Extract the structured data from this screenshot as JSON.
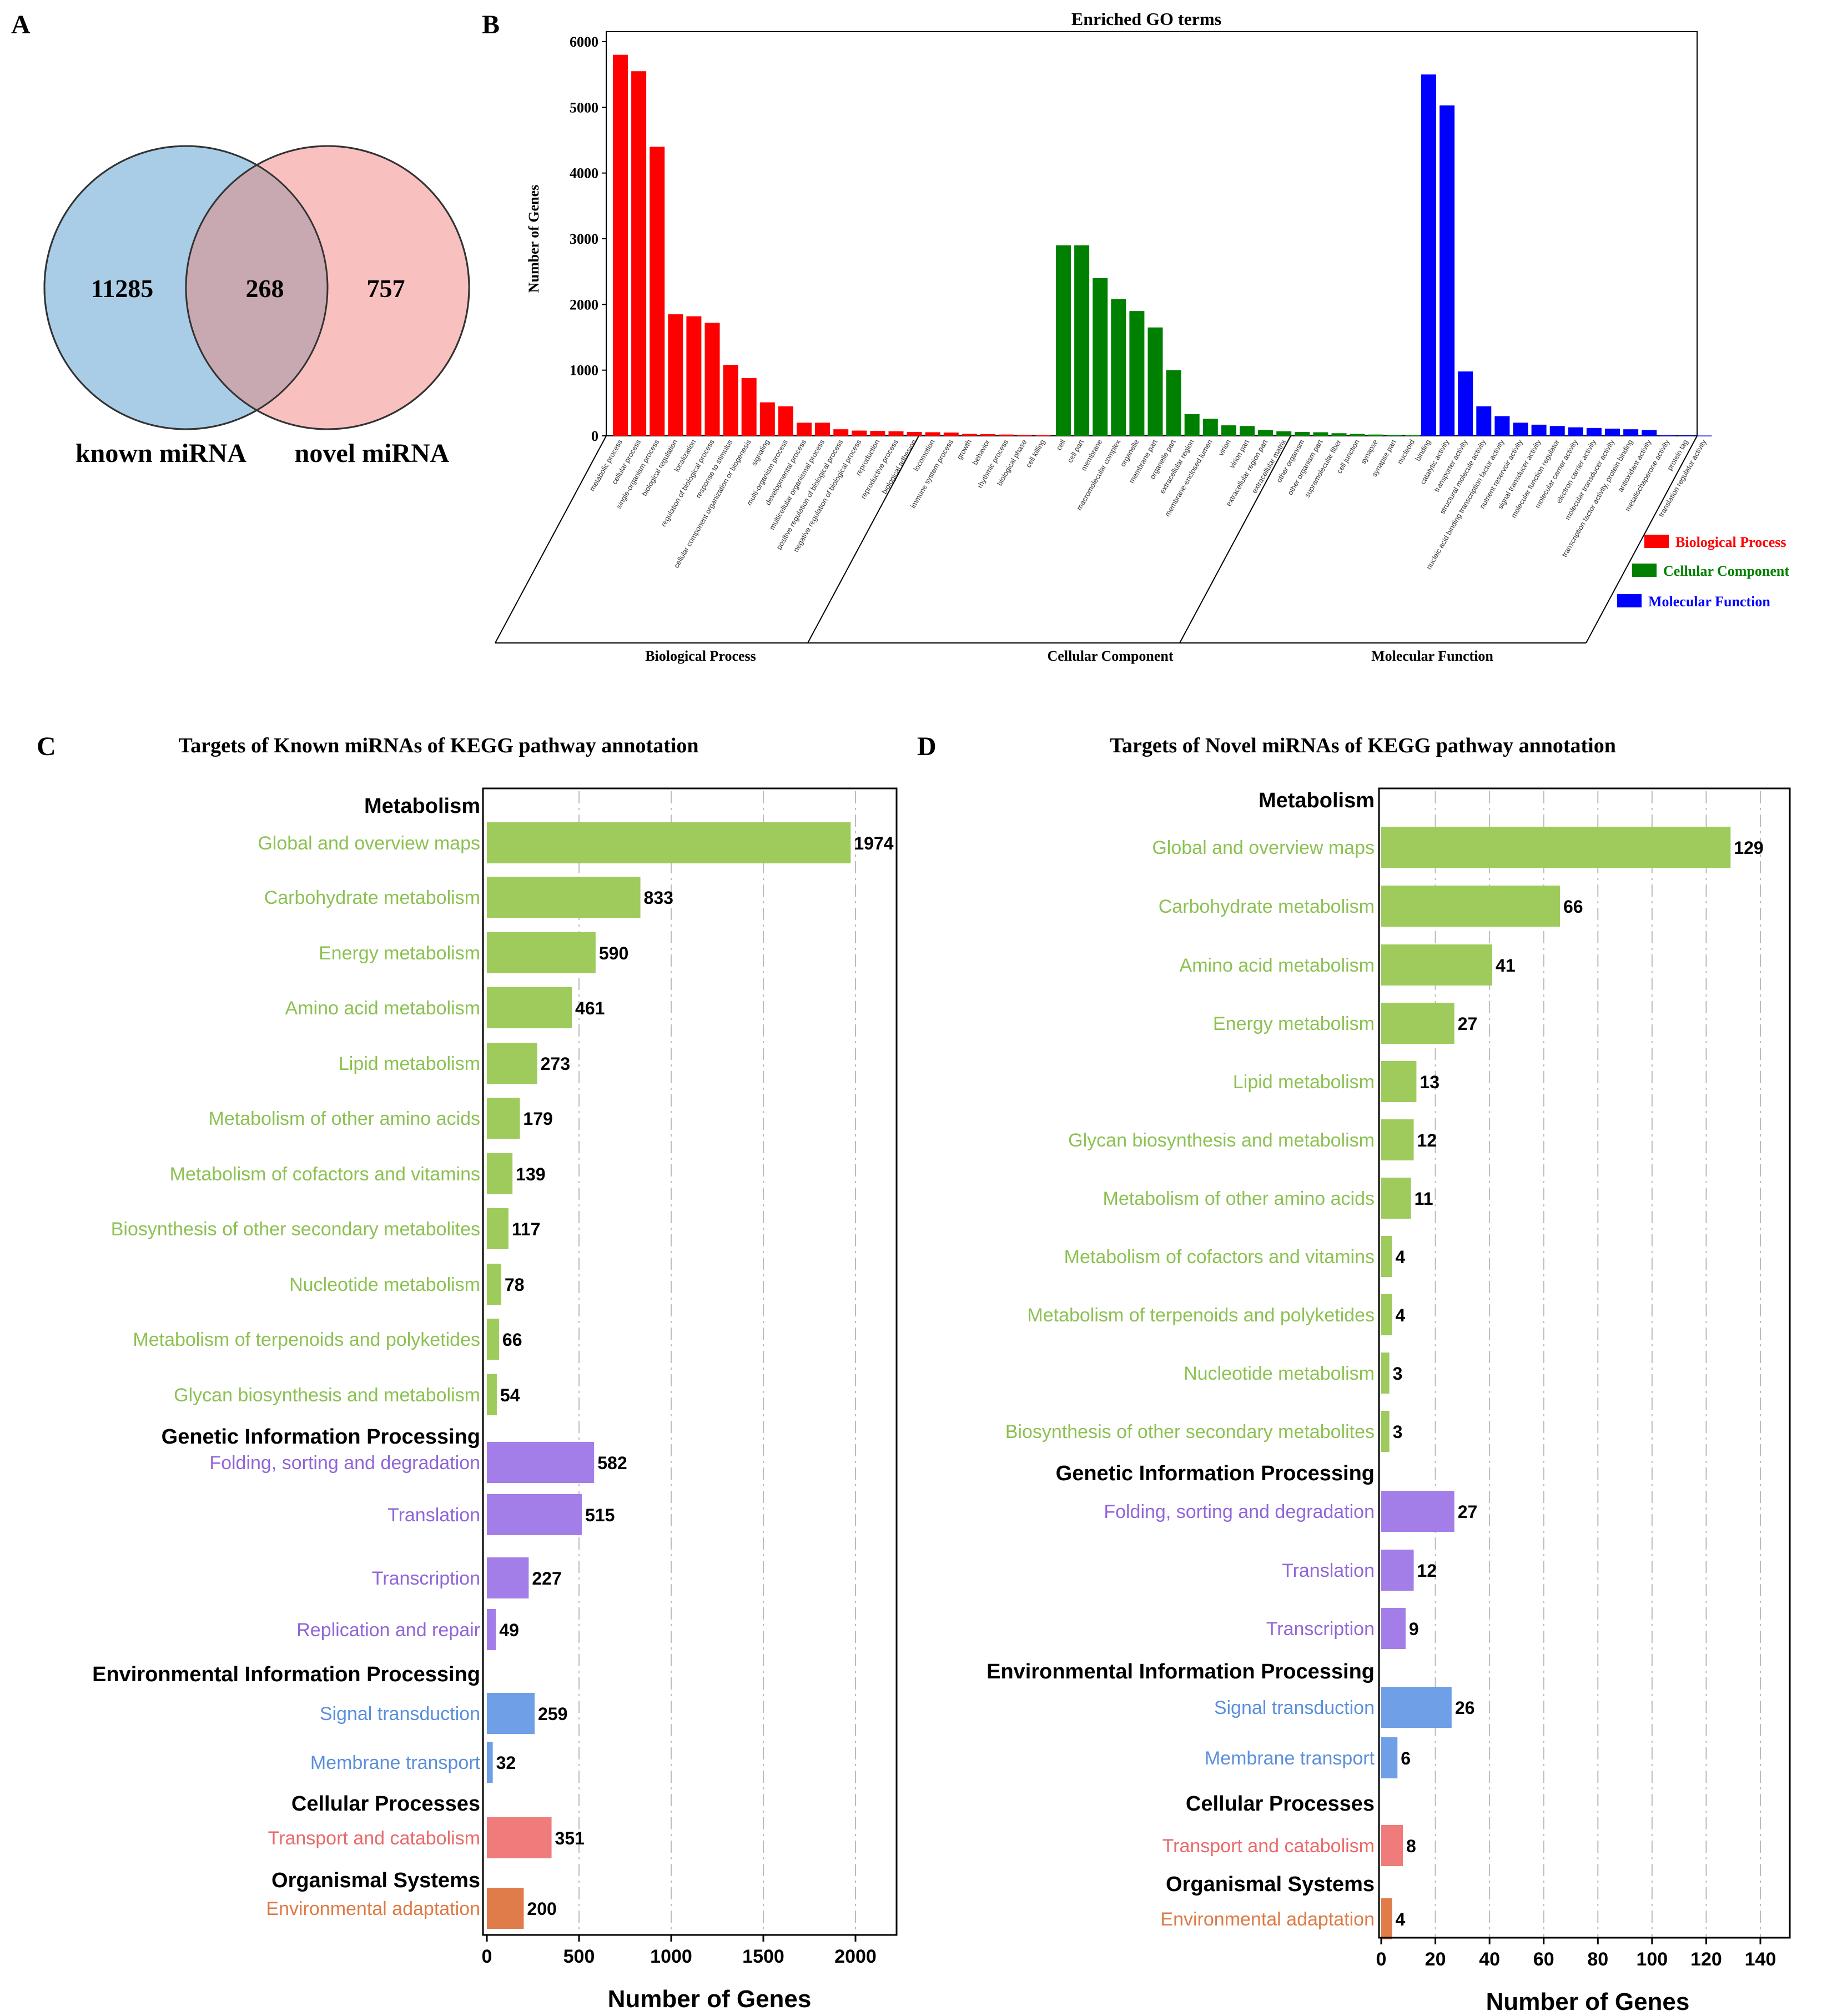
{
  "panel_letters": [
    "A",
    "B",
    "C",
    "D"
  ],
  "chart_data": [
    {
      "type": "venn",
      "panel": "A",
      "sets": [
        {
          "label": "known miRNA",
          "only": "11285",
          "color": "#a9cde6"
        },
        {
          "label": "novel miRNA",
          "only": "757",
          "color": "#f8c1c0"
        }
      ],
      "overlap": "268",
      "overlap_color": "#c8a9b2"
    },
    {
      "type": "bar",
      "panel": "B",
      "title": "Enriched GO terms",
      "ylabel": "Number of Genes",
      "ylim": [
        0,
        6000
      ],
      "yticks": [
        0,
        1000,
        2000,
        3000,
        4000,
        5000,
        6000
      ],
      "legend_position": "right",
      "groups": [
        {
          "name": "Biological Process",
          "legend": "Biological Process",
          "color": "#ff0000",
          "terms": [
            "metabolic process",
            "cellular process",
            "single-organism process",
            "biological regulation",
            "localization",
            "regulation of biological process",
            "response to stimulus",
            "cellular component organization or biogenesis",
            "signaling",
            "multi-organism process",
            "developmental process",
            "multicellular organismal process",
            "positive regulation of biological process",
            "negative regulation of biological process",
            "reproduction",
            "reproductive process",
            "biological adhesion",
            "locomotion",
            "immune system process",
            "growth",
            "behavior",
            "rhythmic process",
            "biological phase",
            "cell killing"
          ],
          "values": [
            5800,
            5550,
            4400,
            1850,
            1820,
            1720,
            1080,
            880,
            510,
            450,
            200,
            200,
            100,
            80,
            75,
            70,
            60,
            55,
            50,
            30,
            25,
            20,
            15,
            10
          ]
        },
        {
          "name": "Cellular Component",
          "legend": "Cellular Component",
          "color": "#008000",
          "terms": [
            "cell",
            "cell part",
            "membrane",
            "macromolecular complex",
            "organelle",
            "membrane part",
            "organelle part",
            "extracellular region",
            "membrane-enclosed lumen",
            "virion",
            "virion part",
            "extracellular region part",
            "extracellular matrix",
            "other organism",
            "other organism part",
            "supramolecular fiber",
            "cell junction",
            "synapse",
            "synapse part",
            "nucleoid"
          ],
          "values": [
            2900,
            2900,
            2400,
            2080,
            1900,
            1650,
            1000,
            330,
            260,
            160,
            150,
            90,
            70,
            60,
            55,
            40,
            30,
            20,
            15,
            10
          ]
        },
        {
          "name": "Molecular Function",
          "legend": "Molecular Function",
          "color": "#0000ff",
          "terms": [
            "binding",
            "catalytic activity",
            "transporter activity",
            "structural molecule activity",
            "nucleic acid binding transcription factor activity",
            "nutrient reservoir activity",
            "signal transducer activity",
            "molecular function regulator",
            "molecular carrier activity",
            "electron carrier activity",
            "molecular transducer activity",
            "transcription factor activity, protein binding",
            "antioxidant activity",
            "metallochaperone activity",
            "protein tag",
            "translation regulator activity"
          ],
          "values": [
            5500,
            5030,
            980,
            450,
            300,
            200,
            170,
            150,
            130,
            120,
            110,
            100,
            90,
            10,
            5,
            5
          ]
        }
      ]
    },
    {
      "type": "bar",
      "orientation": "horizontal",
      "panel": "C",
      "title": "Targets of Known miRNAs of KEGG pathway annotation",
      "xlabel": "Number of Genes",
      "xlim": [
        0,
        2200
      ],
      "xticks": [
        0,
        500,
        1000,
        1500,
        2000
      ],
      "groups": [
        {
          "name": "Metabolism",
          "color": "#9ecb5c",
          "text_color": "#8cc152",
          "items": [
            {
              "label": "Global and overview maps",
              "value": 1974
            },
            {
              "label": "Carbohydrate metabolism",
              "value": 833
            },
            {
              "label": "Energy metabolism",
              "value": 590
            },
            {
              "label": "Amino acid metabolism",
              "value": 461
            },
            {
              "label": "Lipid metabolism",
              "value": 273
            },
            {
              "label": "Metabolism of other amino acids",
              "value": 179
            },
            {
              "label": "Metabolism of cofactors and vitamins",
              "value": 139
            },
            {
              "label": "Biosynthesis of other secondary metabolites",
              "value": 117
            },
            {
              "label": "Nucleotide metabolism",
              "value": 78
            },
            {
              "label": "Metabolism of terpenoids and polyketides",
              "value": 66
            },
            {
              "label": "Glycan biosynthesis and metabolism",
              "value": 54
            }
          ]
        },
        {
          "name": "Genetic Information Processing",
          "color": "#a47ee8",
          "text_color": "#9066d8",
          "items": [
            {
              "label": "Folding, sorting and degradation",
              "value": 582
            },
            {
              "label": "Translation",
              "value": 515
            },
            {
              "label": "Transcription",
              "value": 227
            },
            {
              "label": "Replication and repair",
              "value": 49
            }
          ]
        },
        {
          "name": "Environmental Information Processing",
          "color": "#6f9fe6",
          "text_color": "#5b8fdc",
          "items": [
            {
              "label": "Signal transduction",
              "value": 259
            },
            {
              "label": "Membrane transport",
              "value": 32
            }
          ]
        },
        {
          "name": "Cellular Processes",
          "color": "#ef7b7b",
          "text_color": "#ea6a6a",
          "items": [
            {
              "label": "Transport and catabolism",
              "value": 351
            }
          ]
        },
        {
          "name": "Organismal Systems",
          "color": "#e07b4a",
          "text_color": "#dd7a45",
          "items": [
            {
              "label": "Environmental adaptation",
              "value": 200
            }
          ]
        }
      ]
    },
    {
      "type": "bar",
      "orientation": "horizontal",
      "panel": "D",
      "title": "Targets of Novel miRNAs of KEGG pathway annotation",
      "xlabel": "Number of Genes",
      "xlim": [
        0,
        150
      ],
      "xticks": [
        0,
        20,
        40,
        60,
        80,
        100,
        120,
        140
      ],
      "groups": [
        {
          "name": "Metabolism",
          "color": "#9ecb5c",
          "text_color": "#8cc152",
          "items": [
            {
              "label": "Global and overview maps",
              "value": 129
            },
            {
              "label": "Carbohydrate metabolism",
              "value": 66
            },
            {
              "label": "Amino acid metabolism",
              "value": 41
            },
            {
              "label": "Energy metabolism",
              "value": 27
            },
            {
              "label": "Lipid metabolism",
              "value": 13
            },
            {
              "label": "Glycan biosynthesis and metabolism",
              "value": 12
            },
            {
              "label": "Metabolism of other amino acids",
              "value": 11
            },
            {
              "label": "Metabolism of cofactors and vitamins",
              "value": 4
            },
            {
              "label": "Metabolism of terpenoids and polyketides",
              "value": 4
            },
            {
              "label": "Nucleotide metabolism",
              "value": 3
            },
            {
              "label": "Biosynthesis of other secondary metabolites",
              "value": 3
            }
          ]
        },
        {
          "name": "Genetic Information Processing",
          "color": "#a47ee8",
          "text_color": "#9066d8",
          "items": [
            {
              "label": "Folding, sorting and degradation",
              "value": 27
            },
            {
              "label": "Translation",
              "value": 12
            },
            {
              "label": "Transcription",
              "value": 9
            }
          ]
        },
        {
          "name": "Environmental Information Processing",
          "color": "#6f9fe6",
          "text_color": "#5b8fdc",
          "items": [
            {
              "label": "Signal transduction",
              "value": 26
            },
            {
              "label": "Membrane transport",
              "value": 6
            }
          ]
        },
        {
          "name": "Cellular Processes",
          "color": "#ef7b7b",
          "text_color": "#ea6a6a",
          "items": [
            {
              "label": "Transport and catabolism",
              "value": 8
            }
          ]
        },
        {
          "name": "Organismal Systems",
          "color": "#e07b4a",
          "text_color": "#dd7a45",
          "items": [
            {
              "label": "Environmental adaptation",
              "value": 4
            }
          ]
        }
      ]
    }
  ]
}
